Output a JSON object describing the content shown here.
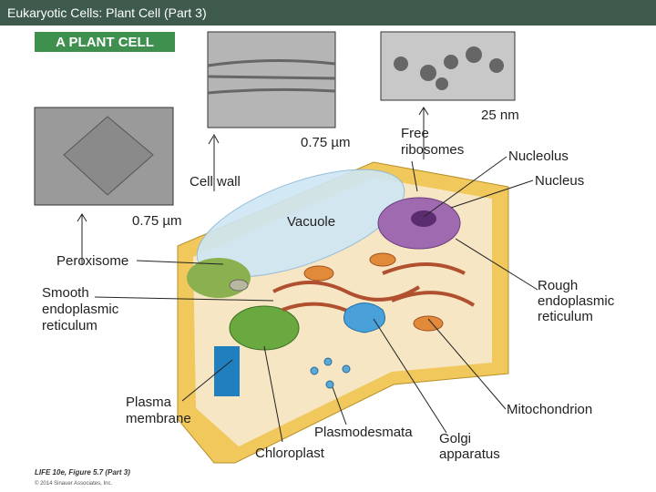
{
  "header": {
    "title": "Eukaryotic Cells: Plant Cell (Part 3)"
  },
  "figure": {
    "heading": "A PLANT CELL",
    "scale_bars": [
      "0.75 µm",
      "0.75 µm",
      "25 nm"
    ],
    "labels": {
      "free_ribosomes": [
        "Free",
        "ribosomes"
      ],
      "nucleolus": [
        "Nucleolus"
      ],
      "nucleus": [
        "Nucleus"
      ],
      "cell_wall": [
        "Cell wall"
      ],
      "vacuole": [
        "Vacuole"
      ],
      "peroxisome": [
        "Peroxisome"
      ],
      "smooth_er": [
        "Smooth",
        "endoplasmic",
        "reticulum"
      ],
      "rough_er": [
        "Rough",
        "endoplasmic",
        "reticulum"
      ],
      "plasma_membrane": [
        "Plasma",
        "membrane"
      ],
      "mitochondrion": [
        "Mitochondrion"
      ],
      "plasmodesmata": [
        "Plasmodesmata"
      ],
      "golgi": [
        "Golgi",
        "apparatus"
      ],
      "chloroplast": [
        "Chloroplast"
      ]
    },
    "credit": [
      "LIFE 10e, Figure 5.7 (Part 3)",
      "© 2014 Sinauer Associates, Inc."
    ]
  }
}
